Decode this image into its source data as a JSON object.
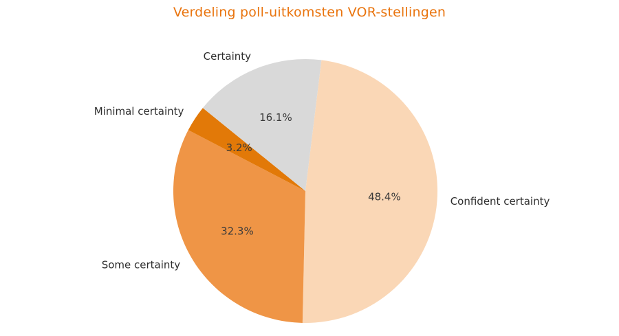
{
  "figure": {
    "background": "#ffffff",
    "title": "Verdeling poll-uitkomsten VOR-stellingen",
    "title_color": "#E9740E"
  },
  "chart_data": {
    "type": "pie",
    "title": "Verdeling poll-uitkomsten VOR-stellingen",
    "slices": [
      {
        "label": "Confident certainty",
        "value": 48.4,
        "pct_label": "48.4%",
        "color": "#FAD7B6"
      },
      {
        "label": "Some certainty",
        "value": 32.3,
        "pct_label": "32.3%",
        "color": "#EF9546"
      },
      {
        "label": "Minimal certainty",
        "value": 3.2,
        "pct_label": "3.2%",
        "color": "#E27908"
      },
      {
        "label": "Certainty",
        "value": 16.1,
        "pct_label": "16.1%",
        "color": "#D9D9D9"
      }
    ],
    "start_angle_deg": 83,
    "direction": "clockwise",
    "label_distance": 1.1,
    "pct_distance": 0.6,
    "label_color": "#2e2e2e",
    "pct_color": "#3a3a3a",
    "legend": "none"
  }
}
